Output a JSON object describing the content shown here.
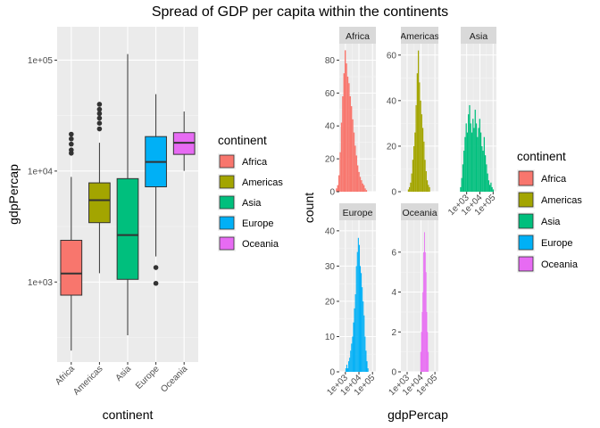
{
  "page": {
    "title": "Spread of GDP per capita within the continents"
  },
  "legend": {
    "title": "continent",
    "items": [
      {
        "label": "Africa",
        "color": "#F8766D"
      },
      {
        "label": "Americas",
        "color": "#A3A500"
      },
      {
        "label": "Asia",
        "color": "#00BF7D"
      },
      {
        "label": "Europe",
        "color": "#00B0F6"
      },
      {
        "label": "Oceania",
        "color": "#E76BF3"
      }
    ]
  },
  "chart_data": [
    {
      "type": "box",
      "xlabel": "continent",
      "ylabel": "gdpPercap",
      "y_scale": "log10",
      "ylim": [
        190,
        200000
      ],
      "y_ticks": [
        1000,
        10000,
        100000
      ],
      "y_tick_labels": [
        "1e+03",
        "1e+04",
        "1e+05"
      ],
      "categories": [
        "Africa",
        "Americas",
        "Asia",
        "Europe",
        "Oceania"
      ],
      "boxes": [
        {
          "category": "Africa",
          "min": 241,
          "q1": 761,
          "median": 1192,
          "q3": 2377,
          "max": 8860,
          "outliers": [
            14500,
            15500,
            17500,
            19500,
            21500
          ]
        },
        {
          "category": "Americas",
          "min": 1200,
          "q1": 3428,
          "median": 5466,
          "q3": 7830,
          "max": 18000,
          "outliers": [
            24000,
            27000,
            30000,
            33000,
            36000,
            40000
          ]
        },
        {
          "category": "Asia",
          "min": 331,
          "q1": 1057,
          "median": 2647,
          "q3": 8549,
          "max": 113523,
          "outliers": []
        },
        {
          "category": "Europe",
          "min": 1700,
          "q1": 7213,
          "median": 12082,
          "q3": 20461,
          "max": 49357,
          "outliers": [
            973,
            1350
          ]
        },
        {
          "category": "Oceania",
          "min": 10040,
          "q1": 14142,
          "median": 17983,
          "q3": 22214,
          "max": 34435,
          "outliers": []
        }
      ]
    },
    {
      "type": "histogram",
      "xlabel": "gdpPercap",
      "ylabel": "count",
      "x_scale": "log10",
      "x_ticks": [
        1000,
        10000,
        100000
      ],
      "x_tick_labels": [
        "1e+03",
        "1e+04",
        "1e+05"
      ],
      "facets": [
        {
          "label": "Africa",
          "y_ticks": [
            0,
            20,
            40,
            60,
            80
          ],
          "ymax": 90,
          "log_x_range": [
            2.3,
            4.6
          ],
          "counts": [
            2,
            4,
            10,
            24,
            42,
            58,
            72,
            86,
            78,
            70,
            66,
            58,
            52,
            44,
            36,
            28,
            22,
            16,
            12,
            9,
            7,
            5,
            4,
            2,
            1
          ]
        },
        {
          "label": "Americas",
          "y_ticks": [
            0,
            20,
            40,
            60
          ],
          "ymax": 65,
          "log_x_range": [
            3.05,
            4.65
          ],
          "counts": [
            1,
            2,
            4,
            8,
            14,
            20,
            26,
            38,
            52,
            62,
            48,
            40,
            34,
            28,
            22,
            14,
            9,
            5,
            3,
            2
          ]
        },
        {
          "label": "Asia",
          "y_ticks": [],
          "ymax": 65,
          "log_x_range": [
            2.5,
            5.05
          ],
          "counts": [
            2,
            6,
            12,
            18,
            24,
            30,
            26,
            34,
            38,
            30,
            26,
            32,
            28,
            36,
            30,
            24,
            28,
            32,
            26,
            20,
            18,
            24,
            16,
            12,
            8,
            5,
            3,
            4,
            2,
            1
          ]
        },
        {
          "label": "Europe",
          "y_ticks": [
            0,
            10,
            20,
            30,
            40
          ],
          "ymax": 43,
          "log_x_range": [
            3.0,
            4.7
          ],
          "counts": [
            1,
            2,
            1,
            3,
            4,
            6,
            8,
            10,
            14,
            18,
            22,
            30,
            34,
            38,
            36,
            30,
            28,
            24,
            20,
            16,
            10,
            6,
            3,
            1
          ]
        },
        {
          "label": "Oceania",
          "y_ticks": [
            0,
            2,
            4,
            6
          ],
          "ymax": 7.6,
          "log_x_range": [
            3.95,
            4.55
          ],
          "counts": [
            1,
            2,
            3,
            4,
            6,
            7,
            6,
            5,
            3,
            2,
            1
          ]
        }
      ]
    }
  ]
}
